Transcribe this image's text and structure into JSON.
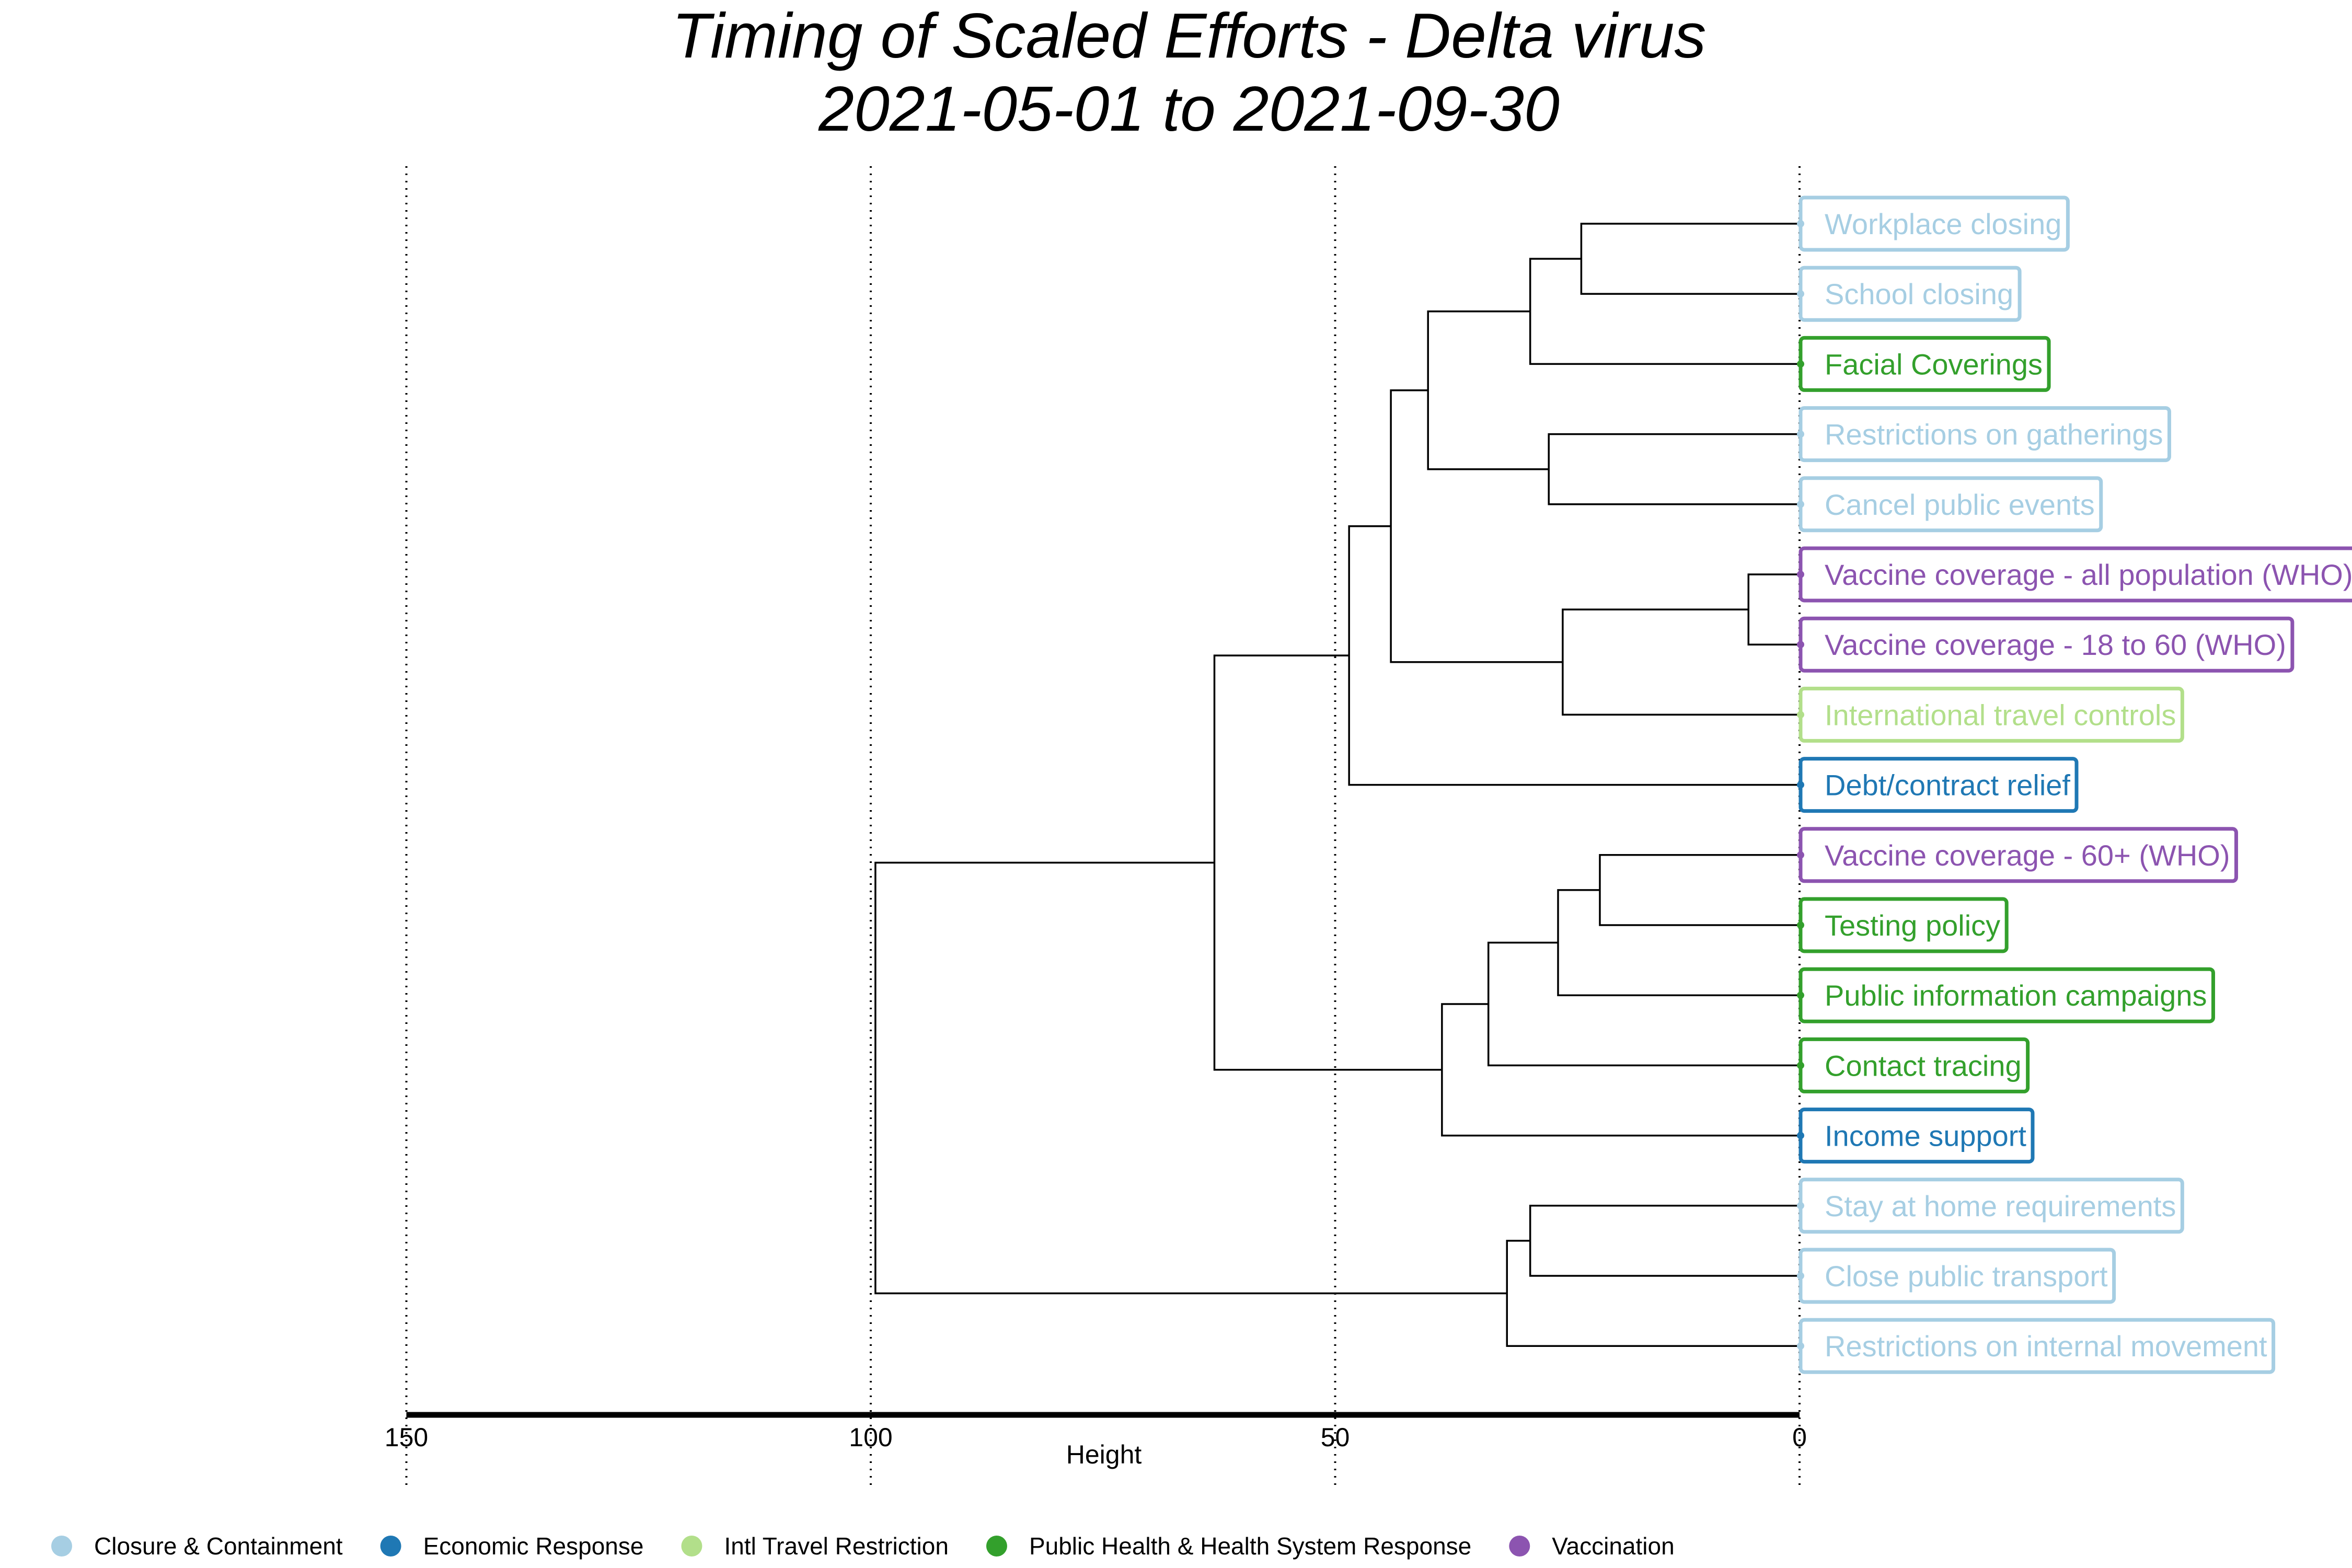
{
  "chart_data": {
    "type": "dendrogram",
    "title": "Timing of Scaled Efforts - Delta virus",
    "subtitle": "2021-05-01 to 2021-09-30",
    "xlabel": "Height",
    "xlim": [
      150,
      0
    ],
    "x_ticks": [
      "150",
      "100",
      "50",
      "0"
    ],
    "x_tick_values": [
      150,
      100,
      50,
      0
    ],
    "grid": "vertical dotted at ticks",
    "legend_position": "bottom",
    "categories": [
      {
        "name": "Closure & Containment",
        "color": "#a6cee3"
      },
      {
        "name": "Economic Response",
        "color": "#1f78b4"
      },
      {
        "name": "Intl Travel Restriction",
        "color": "#b2df8a"
      },
      {
        "name": "Public Health & Health System Response",
        "color": "#33a02c"
      },
      {
        "name": "Vaccination",
        "color": "#8c54b0"
      }
    ],
    "leaves": [
      {
        "label": "Workplace closing",
        "category": 0
      },
      {
        "label": "School closing",
        "category": 0
      },
      {
        "label": "Facial Coverings",
        "category": 3
      },
      {
        "label": "Restrictions on gatherings",
        "category": 0
      },
      {
        "label": "Cancel public events",
        "category": 0
      },
      {
        "label": "Vaccine coverage - all population (WHO)",
        "category": 4
      },
      {
        "label": "Vaccine coverage - 18 to 60 (WHO)",
        "category": 4
      },
      {
        "label": "International travel controls",
        "category": 2
      },
      {
        "label": "Debt/contract relief",
        "category": 1
      },
      {
        "label": "Vaccine coverage - 60+ (WHO)",
        "category": 4
      },
      {
        "label": "Testing policy",
        "category": 3
      },
      {
        "label": "Public information campaigns",
        "category": 3
      },
      {
        "label": "Contact tracing",
        "category": 3
      },
      {
        "label": "Income support",
        "category": 1
      },
      {
        "label": "Stay at home requirements",
        "category": 0
      },
      {
        "label": "Close public transport",
        "category": 0
      },
      {
        "label": "Restrictions on internal movement",
        "category": 0
      }
    ],
    "merges": [
      {
        "id": "m1",
        "left": 0,
        "right": 1,
        "height": 23.5
      },
      {
        "id": "m2",
        "left": "m1",
        "right": 2,
        "height": 29
      },
      {
        "id": "m3",
        "left": 3,
        "right": 4,
        "height": 27
      },
      {
        "id": "m4",
        "left": "m2",
        "right": "m3",
        "height": 40
      },
      {
        "id": "m5",
        "left": 5,
        "right": 6,
        "height": 5.5
      },
      {
        "id": "m6",
        "left": "m5",
        "right": 7,
        "height": 25.5
      },
      {
        "id": "m7",
        "left": "m4",
        "right": "m6",
        "height": 44
      },
      {
        "id": "m8",
        "left": "m7",
        "right": 8,
        "height": 48.5
      },
      {
        "id": "m9",
        "left": 9,
        "right": 10,
        "height": 21.5
      },
      {
        "id": "m10",
        "left": "m9",
        "right": 11,
        "height": 26
      },
      {
        "id": "m11",
        "left": "m10",
        "right": 12,
        "height": 33.5
      },
      {
        "id": "m12",
        "left": "m11",
        "right": 13,
        "height": 38.5
      },
      {
        "id": "m13",
        "left": "m8",
        "right": "m12",
        "height": 63
      },
      {
        "id": "m14",
        "left": 14,
        "right": 15,
        "height": 29
      },
      {
        "id": "m15",
        "left": "m14",
        "right": 16,
        "height": 31.5
      },
      {
        "id": "m16",
        "left": "m13",
        "right": "m15",
        "height": 99.5
      }
    ]
  }
}
